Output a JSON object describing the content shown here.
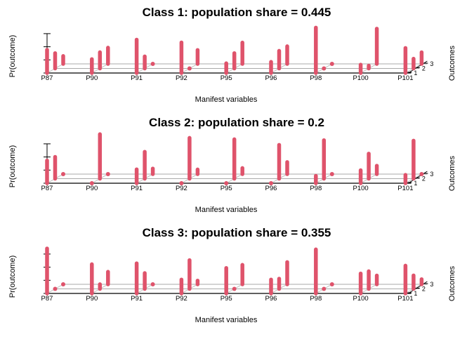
{
  "chart_data": [
    {
      "type": "bar",
      "subtype": "3d-bar",
      "title": "Class 1: population share = 0.445",
      "xlabel": "Manifest variables",
      "ylabel": "Pr(outcome)",
      "zlabel": "Outcomes",
      "ylim": [
        0,
        1
      ],
      "categories": [
        "P87",
        "P90",
        "P91",
        "P92",
        "P95",
        "P96",
        "P98",
        "P100",
        "P101"
      ],
      "outcomes": [
        "1",
        "2",
        "3"
      ],
      "series": [
        {
          "name": "1",
          "values": [
            0.5,
            0.3,
            0.72,
            0.66,
            0.21,
            0.24,
            0.98,
            0.18,
            0.54
          ]
        },
        {
          "name": "2",
          "values": [
            0.33,
            0.35,
            0.26,
            0.04,
            0.33,
            0.38,
            0.02,
            0.06,
            0.21
          ]
        },
        {
          "name": "3",
          "values": [
            0.17,
            0.35,
            0.02,
            0.3,
            0.46,
            0.38,
            0.0,
            0.76,
            0.25
          ]
        }
      ],
      "color": "#DF536B",
      "grid": true
    },
    {
      "type": "bar",
      "subtype": "3d-bar",
      "title": "Class 2: population share = 0.2",
      "xlabel": "Manifest variables",
      "ylabel": "Pr(outcome)",
      "zlabel": "Outcomes",
      "ylim": [
        0,
        1
      ],
      "categories": [
        "P87",
        "P90",
        "P91",
        "P92",
        "P95",
        "P96",
        "P98",
        "P100",
        "P101"
      ],
      "outcomes": [
        "1",
        "2",
        "3"
      ],
      "series": [
        {
          "name": "1",
          "values": [
            0.49,
            0.02,
            0.3,
            0.02,
            0.02,
            0.01,
            0.16,
            0.28,
            0.18
          ]
        },
        {
          "name": "2",
          "values": [
            0.47,
            0.96,
            0.58,
            0.88,
            0.85,
            0.73,
            0.83,
            0.54,
            0.82
          ]
        },
        {
          "name": "3",
          "values": [
            0.04,
            0.02,
            0.12,
            0.1,
            0.13,
            0.26,
            0.01,
            0.18,
            0.0
          ]
        }
      ],
      "color": "#DF536B",
      "grid": true
    },
    {
      "type": "bar",
      "subtype": "3d-bar",
      "title": "Class 3: population share = 0.355",
      "xlabel": "Manifest variables",
      "ylabel": "Pr(outcome)",
      "zlabel": "Outcomes",
      "ylim": [
        0,
        1
      ],
      "categories": [
        "P87",
        "P90",
        "P91",
        "P92",
        "P95",
        "P96",
        "P98",
        "P100",
        "P101"
      ],
      "outcomes": [
        "1",
        "2",
        "3"
      ],
      "series": [
        {
          "name": "1",
          "values": [
            0.97,
            0.63,
            0.65,
            0.3,
            0.55,
            0.3,
            0.95,
            0.43,
            0.6
          ]
        },
        {
          "name": "2",
          "values": [
            0.02,
            0.1,
            0.34,
            0.62,
            0.03,
            0.22,
            0.04,
            0.38,
            0.29
          ]
        },
        {
          "name": "3",
          "values": [
            0.01,
            0.27,
            0.01,
            0.08,
            0.42,
            0.48,
            0.01,
            0.19,
            0.11
          ]
        }
      ],
      "color": "#DF536B",
      "grid": true
    }
  ]
}
